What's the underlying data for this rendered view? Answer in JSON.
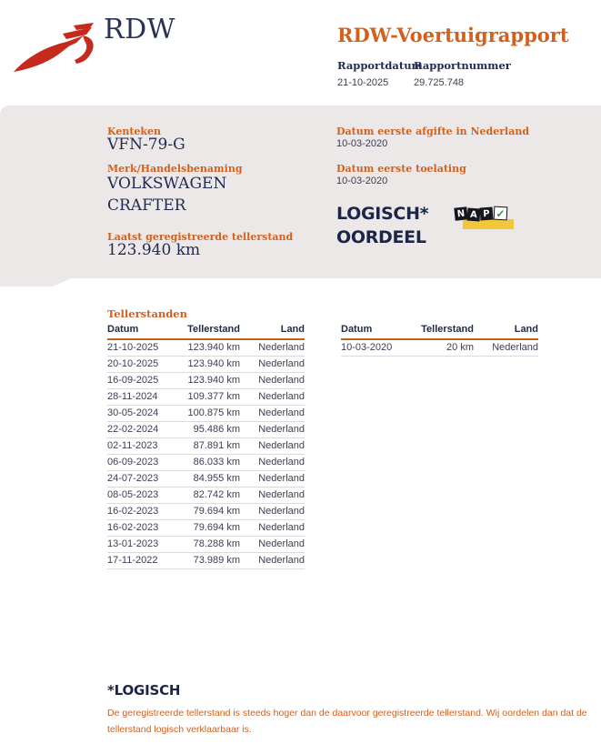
{
  "header": {
    "brand": "RDW",
    "title": "RDW-Voertuigrapport",
    "report_date": {
      "label": "Rapportdatum",
      "value": "21-10-2025"
    },
    "report_number": {
      "label": "Rapportnummer",
      "value": "29.725.748"
    }
  },
  "summary": {
    "kenteken": {
      "label": "Kenteken",
      "value": "VFN-79-G"
    },
    "merk": {
      "label": "Merk/Handelsbenaming",
      "value_line1": "VOLKSWAGEN",
      "value_line2": "CRAFTER"
    },
    "laatste_tellerstand": {
      "label": "Laatst geregistreerde tellerstand",
      "value": "123.940 km"
    },
    "eerste_afgifte": {
      "label": "Datum eerste afgifte in Nederland",
      "value": "10-03-2020"
    },
    "eerste_toelating": {
      "label": "Datum eerste toelating",
      "value": "10-03-2020"
    },
    "oordeel": {
      "line1": "LOGISCH*",
      "line2": "OORDEEL"
    },
    "nap": {
      "letters": [
        "N",
        "A",
        "P"
      ],
      "check": "✓"
    }
  },
  "tellerstanden": {
    "section_title": "Tellerstanden",
    "columns": [
      "Datum",
      "Tellerstand",
      "Land"
    ],
    "history": [
      [
        "21-10-2025",
        "123.940 km",
        "Nederland"
      ],
      [
        "20-10-2025",
        "123.940 km",
        "Nederland"
      ],
      [
        "16-09-2025",
        "123.940 km",
        "Nederland"
      ],
      [
        "28-11-2024",
        "109.377 km",
        "Nederland"
      ],
      [
        "30-05-2024",
        "100.875 km",
        "Nederland"
      ],
      [
        "22-02-2024",
        "95.486 km",
        "Nederland"
      ],
      [
        "02-11-2023",
        "87.891 km",
        "Nederland"
      ],
      [
        "06-09-2023",
        "86.033 km",
        "Nederland"
      ],
      [
        "24-07-2023",
        "84.955 km",
        "Nederland"
      ],
      [
        "08-05-2023",
        "82.742 km",
        "Nederland"
      ],
      [
        "16-02-2023",
        "79.694 km",
        "Nederland"
      ],
      [
        "16-02-2023",
        "79.694 km",
        "Nederland"
      ],
      [
        "13-01-2023",
        "78.288 km",
        "Nederland"
      ],
      [
        "17-11-2022",
        "73.989 km",
        "Nederland"
      ]
    ],
    "first_registration": [
      [
        "10-03-2020",
        "20 km",
        "Nederland"
      ]
    ]
  },
  "footnote": {
    "title": "*LOGISCH",
    "text": "De geregistreerde tellerstand is steeds hoger dan de daarvoor geregistreerde tellerstand. Wij oordelen dan dat de tellerstand logisch verklaarbaar is."
  },
  "colors": {
    "orange": "#D2611E",
    "navy": "#222B52",
    "panel_grey": "#ECE8E7",
    "logo_red": "#C62A1C",
    "nap_yellow": "#F2C73B",
    "nap_green": "#2EA13F"
  }
}
